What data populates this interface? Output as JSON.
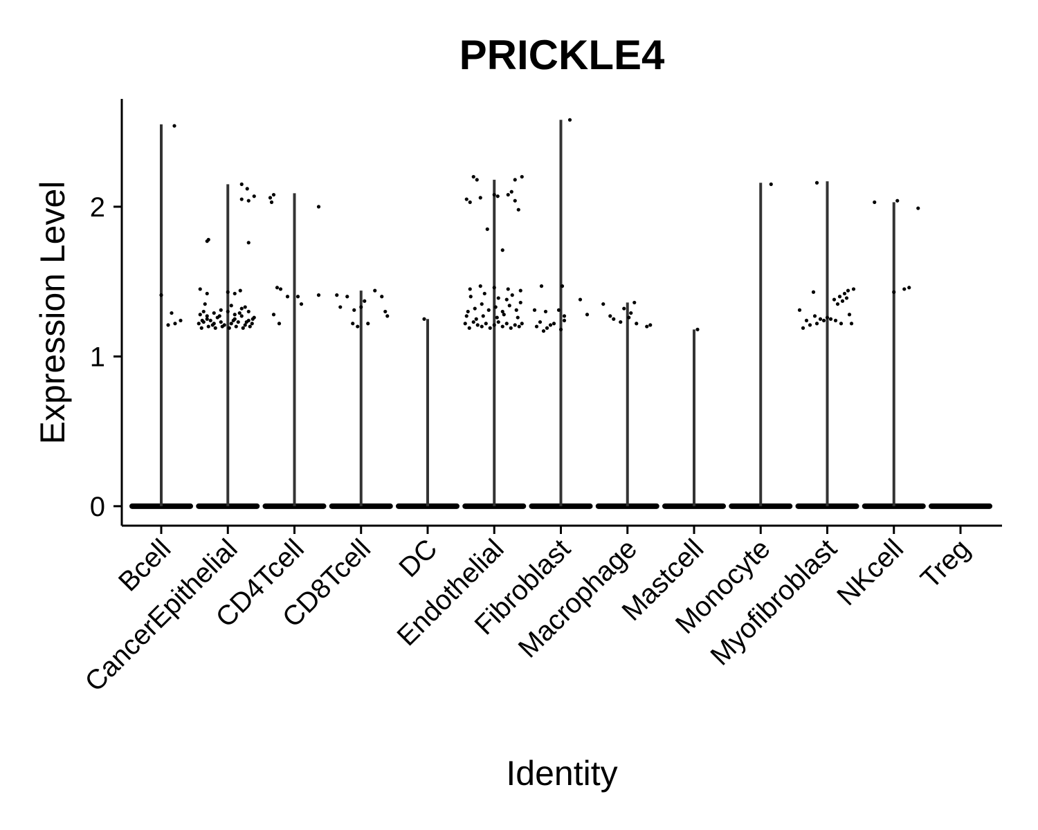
{
  "chart_data": {
    "type": "violin",
    "title": "PRICKLE4",
    "xlabel": "Identity",
    "ylabel": "Expression Level",
    "ylim": [
      -0.13,
      2.72
    ],
    "yticks": [
      0,
      1,
      2
    ],
    "grid": false,
    "legend": "none",
    "point_color": "#000000",
    "violin_color": "#333333",
    "categories": [
      "Bcell",
      "CancerEpithelial",
      "CD4Tcell",
      "CD8Tcell",
      "DC",
      "Endothelial",
      "Fibroblast",
      "Macrophage",
      "Mastcell",
      "Monocyte",
      "Myofibroblast",
      "NKcell",
      "Treg"
    ],
    "max_values": [
      2.55,
      2.15,
      2.09,
      1.44,
      1.25,
      2.18,
      2.58,
      1.36,
      1.18,
      2.16,
      2.17,
      2.03,
      0.0
    ],
    "points": [
      [
        [
          0.0,
          1.41
        ],
        [
          0.15,
          1.29
        ],
        [
          0.1,
          1.21
        ],
        [
          0.2,
          1.22
        ],
        [
          0.28,
          1.24
        ],
        [
          0.19,
          2.54
        ]
      ],
      [
        [
          -0.3,
          1.77
        ],
        [
          -0.28,
          1.78
        ],
        [
          0.3,
          1.76
        ],
        [
          0.2,
          2.05
        ],
        [
          0.3,
          2.04
        ],
        [
          0.28,
          2.12
        ],
        [
          0.2,
          2.15
        ],
        [
          0.38,
          2.07
        ],
        [
          -0.4,
          1.45
        ],
        [
          -0.3,
          1.42
        ],
        [
          0.0,
          1.43
        ],
        [
          0.1,
          1.42
        ],
        [
          0.18,
          1.44
        ],
        [
          -0.42,
          1.22
        ],
        [
          -0.35,
          1.23
        ],
        [
          -0.3,
          1.25
        ],
        [
          -0.25,
          1.24
        ],
        [
          -0.2,
          1.22
        ],
        [
          -0.15,
          1.26
        ],
        [
          -0.1,
          1.23
        ],
        [
          -0.05,
          1.21
        ],
        [
          0.05,
          1.22
        ],
        [
          0.1,
          1.25
        ],
        [
          0.15,
          1.23
        ],
        [
          0.2,
          1.27
        ],
        [
          0.25,
          1.21
        ],
        [
          0.3,
          1.24
        ],
        [
          0.35,
          1.22
        ],
        [
          0.38,
          1.26
        ],
        [
          -0.4,
          1.28
        ],
        [
          -0.35,
          1.3
        ],
        [
          -0.3,
          1.27
        ],
        [
          -0.2,
          1.29
        ],
        [
          -0.1,
          1.31
        ],
        [
          0.0,
          1.3
        ],
        [
          0.1,
          1.28
        ],
        [
          0.2,
          1.32
        ],
        [
          0.3,
          1.3
        ],
        [
          -0.38,
          1.19
        ],
        [
          -0.28,
          1.2
        ],
        [
          -0.18,
          1.19
        ],
        [
          -0.08,
          1.2
        ],
        [
          0.02,
          1.19
        ],
        [
          0.12,
          1.2
        ],
        [
          0.22,
          1.19
        ],
        [
          0.32,
          1.2
        ],
        [
          -0.33,
          1.35
        ],
        [
          0.05,
          1.34
        ],
        [
          0.25,
          1.33
        ],
        [
          -0.22,
          1.21
        ],
        [
          0.08,
          1.24
        ],
        [
          0.27,
          1.23
        ],
        [
          -0.12,
          1.27
        ],
        [
          0.17,
          1.29
        ],
        [
          -0.37,
          1.24
        ],
        [
          0.36,
          1.25
        ]
      ],
      [
        [
          -0.35,
          2.06
        ],
        [
          -0.3,
          2.08
        ],
        [
          -0.33,
          2.03
        ],
        [
          0.35,
          2.0
        ],
        [
          -0.25,
          1.46
        ],
        [
          -0.2,
          1.45
        ],
        [
          -0.1,
          1.4
        ],
        [
          0.05,
          1.4
        ],
        [
          -0.22,
          1.22
        ],
        [
          0.1,
          1.35
        ],
        [
          0.35,
          1.41
        ],
        [
          -0.3,
          1.28
        ]
      ],
      [
        [
          -0.35,
          1.41
        ],
        [
          -0.3,
          1.33
        ],
        [
          -0.2,
          1.4
        ],
        [
          -0.1,
          1.31
        ],
        [
          -0.05,
          1.2
        ],
        [
          0.0,
          1.33
        ],
        [
          0.1,
          1.22
        ],
        [
          0.2,
          1.44
        ],
        [
          0.3,
          1.4
        ],
        [
          0.35,
          1.3
        ],
        [
          0.38,
          1.27
        ],
        [
          0.05,
          1.37
        ],
        [
          -0.12,
          1.22
        ]
      ],
      [
        [
          -0.05,
          1.25
        ]
      ],
      [
        [
          -0.3,
          2.2
        ],
        [
          -0.25,
          2.18
        ],
        [
          -0.2,
          2.06
        ],
        [
          0.25,
          2.1
        ],
        [
          0.3,
          2.18
        ],
        [
          0.2,
          2.08
        ],
        [
          0.35,
          1.98
        ],
        [
          -0.4,
          2.05
        ],
        [
          -0.35,
          2.03
        ],
        [
          0.0,
          2.08
        ],
        [
          0.05,
          2.07
        ],
        [
          -0.1,
          1.85
        ],
        [
          0.12,
          1.71
        ],
        [
          0.4,
          2.2
        ],
        [
          0.3,
          2.04
        ],
        [
          -0.35,
          1.45
        ],
        [
          -0.2,
          1.47
        ],
        [
          0.0,
          1.46
        ],
        [
          0.2,
          1.45
        ],
        [
          0.38,
          1.44
        ],
        [
          -0.42,
          1.22
        ],
        [
          -0.36,
          1.19
        ],
        [
          -0.3,
          1.23
        ],
        [
          -0.24,
          1.21
        ],
        [
          -0.18,
          1.2
        ],
        [
          -0.12,
          1.22
        ],
        [
          -0.06,
          1.19
        ],
        [
          0.0,
          1.21
        ],
        [
          0.06,
          1.23
        ],
        [
          0.12,
          1.2
        ],
        [
          0.18,
          1.22
        ],
        [
          0.24,
          1.19
        ],
        [
          0.3,
          1.21
        ],
        [
          0.36,
          1.2
        ],
        [
          0.4,
          1.22
        ],
        [
          -0.38,
          1.3
        ],
        [
          -0.28,
          1.32
        ],
        [
          -0.18,
          1.35
        ],
        [
          -0.08,
          1.31
        ],
        [
          0.02,
          1.33
        ],
        [
          0.12,
          1.3
        ],
        [
          0.22,
          1.34
        ],
        [
          0.32,
          1.31
        ],
        [
          -0.34,
          1.4
        ],
        [
          -0.14,
          1.42
        ],
        [
          0.06,
          1.39
        ],
        [
          0.26,
          1.41
        ],
        [
          -0.26,
          1.25
        ],
        [
          -0.16,
          1.27
        ],
        [
          0.04,
          1.26
        ],
        [
          0.14,
          1.28
        ],
        [
          0.34,
          1.26
        ],
        [
          -0.4,
          1.27
        ],
        [
          0.38,
          1.36
        ],
        [
          0.18,
          1.38
        ]
      ],
      [
        [
          -0.28,
          1.47
        ],
        [
          -0.38,
          1.31
        ],
        [
          -0.22,
          1.3
        ],
        [
          -0.3,
          1.23
        ],
        [
          -0.35,
          1.2
        ],
        [
          -0.2,
          1.19
        ],
        [
          -0.15,
          1.21
        ],
        [
          -0.1,
          1.22
        ],
        [
          0.0,
          1.18
        ],
        [
          0.02,
          1.47
        ],
        [
          0.05,
          1.27
        ],
        [
          0.05,
          1.24
        ],
        [
          0.13,
          2.58
        ],
        [
          0.28,
          1.38
        ],
        [
          0.38,
          1.28
        ],
        [
          -0.25,
          1.17
        ],
        [
          -0.03,
          1.31
        ]
      ],
      [
        [
          -0.35,
          1.35
        ],
        [
          -0.25,
          1.27
        ],
        [
          -0.2,
          1.25
        ],
        [
          -0.05,
          1.32
        ],
        [
          0.02,
          1.26
        ],
        [
          0.1,
          1.36
        ],
        [
          0.13,
          1.22
        ],
        [
          0.28,
          1.2
        ],
        [
          0.33,
          1.21
        ],
        [
          -0.1,
          1.23
        ],
        [
          0.05,
          1.29
        ]
      ],
      [
        [
          0.05,
          1.18
        ]
      ],
      [
        [
          0.15,
          2.15
        ]
      ],
      [
        [
          -0.15,
          2.16
        ],
        [
          -0.4,
          1.31
        ],
        [
          -0.3,
          1.24
        ],
        [
          -0.25,
          1.21
        ],
        [
          -0.2,
          1.43
        ],
        [
          -0.15,
          1.22
        ],
        [
          -0.1,
          1.25
        ],
        [
          -0.05,
          1.24
        ],
        [
          0.0,
          1.26
        ],
        [
          0.05,
          1.25
        ],
        [
          0.1,
          1.38
        ],
        [
          0.15,
          1.35
        ],
        [
          0.18,
          1.4
        ],
        [
          0.22,
          1.37
        ],
        [
          0.25,
          1.42
        ],
        [
          0.28,
          1.39
        ],
        [
          0.3,
          1.44
        ],
        [
          0.32,
          1.28
        ],
        [
          0.35,
          1.22
        ],
        [
          0.38,
          1.45
        ],
        [
          -0.35,
          1.19
        ],
        [
          0.2,
          1.22
        ],
        [
          0.12,
          1.24
        ],
        [
          -0.18,
          1.27
        ]
      ],
      [
        [
          -0.28,
          2.03
        ],
        [
          0.05,
          2.04
        ],
        [
          0.35,
          1.99
        ],
        [
          0.0,
          1.43
        ],
        [
          0.15,
          1.45
        ],
        [
          0.22,
          1.46
        ]
      ],
      []
    ]
  }
}
